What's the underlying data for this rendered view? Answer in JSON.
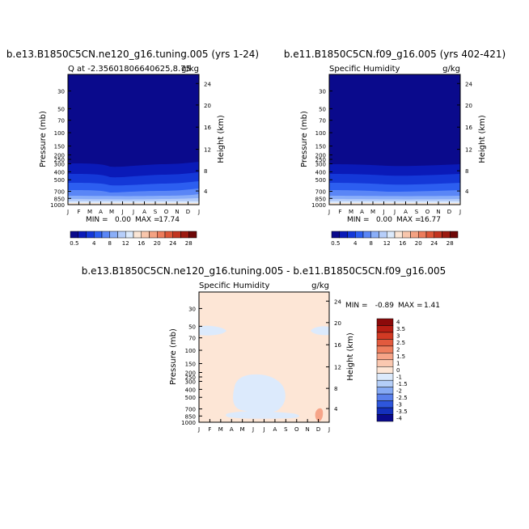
{
  "chart_data": [
    {
      "type": "heatmap",
      "title": "b.e13.B1850C5CN.ne120_g16.tuning.005 (yrs 1-24)",
      "subtitle_left": "Q at -2.35601806640625,8.75",
      "subtitle_right": "g/kg",
      "ylabel": "Pressure (mb)",
      "ylabel_right": "Height (km)",
      "pressure_ticks": [
        "30",
        "50",
        "70",
        "100",
        "150",
        "200",
        "250",
        "300",
        "400",
        "500",
        "700",
        "850",
        "1000"
      ],
      "height_ticks": [
        "24",
        "20",
        "16",
        "12",
        "8",
        "4"
      ],
      "month_ticks": [
        "J",
        "F",
        "M",
        "A",
        "M",
        "J",
        "J",
        "A",
        "S",
        "O",
        "N",
        "D",
        "J"
      ],
      "min_label": "MIN =",
      "min_value": "0.00",
      "max_label": "MAX =",
      "max_value": "17.74",
      "colorbar_labels": [
        "0.5",
        "4",
        "8",
        "12",
        "16",
        "20",
        "24",
        "28"
      ],
      "colorbar_colors": [
        "#0a0a8c",
        "#0a1ab8",
        "#1438d8",
        "#2c5ef0",
        "#5a86f6",
        "#8aaef8",
        "#b6cefa",
        "#dceafc",
        "#fbe6d6",
        "#f8c6ac",
        "#f4a282",
        "#ec7c5c",
        "#dc5638",
        "#c23420",
        "#9c1a10",
        "#6e0808"
      ]
    },
    {
      "type": "heatmap",
      "title": "b.e11.B1850C5CN.f09_g16.005 (yrs 402-421)",
      "subtitle_left": "Specific Humidity",
      "subtitle_right": "g/kg",
      "ylabel": "Pressure (mb)",
      "ylabel_right": "Height (km)",
      "pressure_ticks": [
        "30",
        "50",
        "70",
        "100",
        "150",
        "200",
        "250",
        "300",
        "400",
        "500",
        "700",
        "850",
        "1000"
      ],
      "height_ticks": [
        "24",
        "20",
        "16",
        "12",
        "8",
        "4"
      ],
      "month_ticks": [
        "J",
        "F",
        "M",
        "A",
        "M",
        "J",
        "J",
        "A",
        "S",
        "O",
        "N",
        "D",
        "J"
      ],
      "min_label": "MIN =",
      "min_value": "0.00",
      "max_label": "MAX =",
      "max_value": "16.77",
      "colorbar_labels": [
        "0.5",
        "4",
        "8",
        "12",
        "16",
        "20",
        "24",
        "28"
      ],
      "colorbar_colors": [
        "#0a0a8c",
        "#0a1ab8",
        "#1438d8",
        "#2c5ef0",
        "#5a86f6",
        "#8aaef8",
        "#b6cefa",
        "#dceafc",
        "#fbe6d6",
        "#f8c6ac",
        "#f4a282",
        "#ec7c5c",
        "#dc5638",
        "#c23420",
        "#9c1a10",
        "#6e0808"
      ]
    },
    {
      "type": "heatmap",
      "title": "b.e13.B1850C5CN.ne120_g16.tuning.005 - b.e11.B1850C5CN.f09_g16.005",
      "subtitle_left": "Specific Humidity",
      "subtitle_right": "g/kg",
      "ylabel": "Pressure (mb)",
      "ylabel_right": "Height (km)",
      "pressure_ticks": [
        "30",
        "50",
        "70",
        "100",
        "150",
        "200",
        "250",
        "300",
        "400",
        "500",
        "700",
        "850",
        "1000"
      ],
      "height_ticks": [
        "24",
        "20",
        "16",
        "12",
        "8",
        "4"
      ],
      "month_ticks": [
        "J",
        "F",
        "M",
        "A",
        "M",
        "J",
        "J",
        "A",
        "S",
        "O",
        "N",
        "D",
        "J"
      ],
      "min_label": "MIN =",
      "min_value": "-0.89",
      "max_label": "MAX =",
      "max_value": "1.41",
      "colorbar_labels": [
        "4",
        "3.5",
        "3",
        "2.5",
        "2",
        "1.5",
        "1",
        "0",
        "-1",
        "-1.5",
        "-2",
        "-2.5",
        "-3",
        "-3.5",
        "-4"
      ],
      "colorbar_colors": [
        "#8c0a0a",
        "#b81e14",
        "#d23a24",
        "#e25a3e",
        "#ee7e5e",
        "#f6a488",
        "#fac8b0",
        "#fde6d6",
        "#dceafc",
        "#b4cef8",
        "#86aaf4",
        "#5a80ec",
        "#2e56dc",
        "#1430bc",
        "#0a0a8c"
      ]
    }
  ]
}
